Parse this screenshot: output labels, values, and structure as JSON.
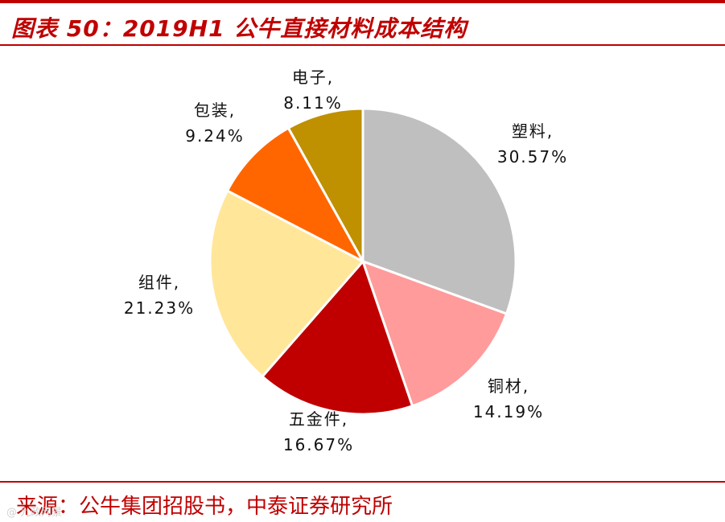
{
  "header": {
    "title": "图表 50：2019H1 公牛直接材料成本结构"
  },
  "footer": {
    "source": "来源：公牛集团招股书，中泰证券研究所",
    "watermark": "@ 九政网景"
  },
  "colors": {
    "accent": "#c00000"
  },
  "chart_data": {
    "type": "pie",
    "title": "2019H1 公牛直接材料成本结构",
    "categories": [
      "塑料",
      "铜材",
      "五金件",
      "组件",
      "包装",
      "电子"
    ],
    "values": [
      30.57,
      14.19,
      16.67,
      21.23,
      9.24,
      8.11
    ],
    "labels": [
      [
        "塑料,",
        "30.57%"
      ],
      [
        "铜材,",
        "14.19%"
      ],
      [
        "五金件,",
        "16.67%"
      ],
      [
        "组件,",
        "21.23%"
      ],
      [
        "包装,",
        "9.24%"
      ],
      [
        "电子,",
        "8.11%"
      ]
    ],
    "colors": [
      "#bfbfbf",
      "#ff9b9b",
      "#c00000",
      "#ffe699",
      "#ff6600",
      "#bf9000"
    ],
    "legend": "none",
    "unit": "%"
  }
}
